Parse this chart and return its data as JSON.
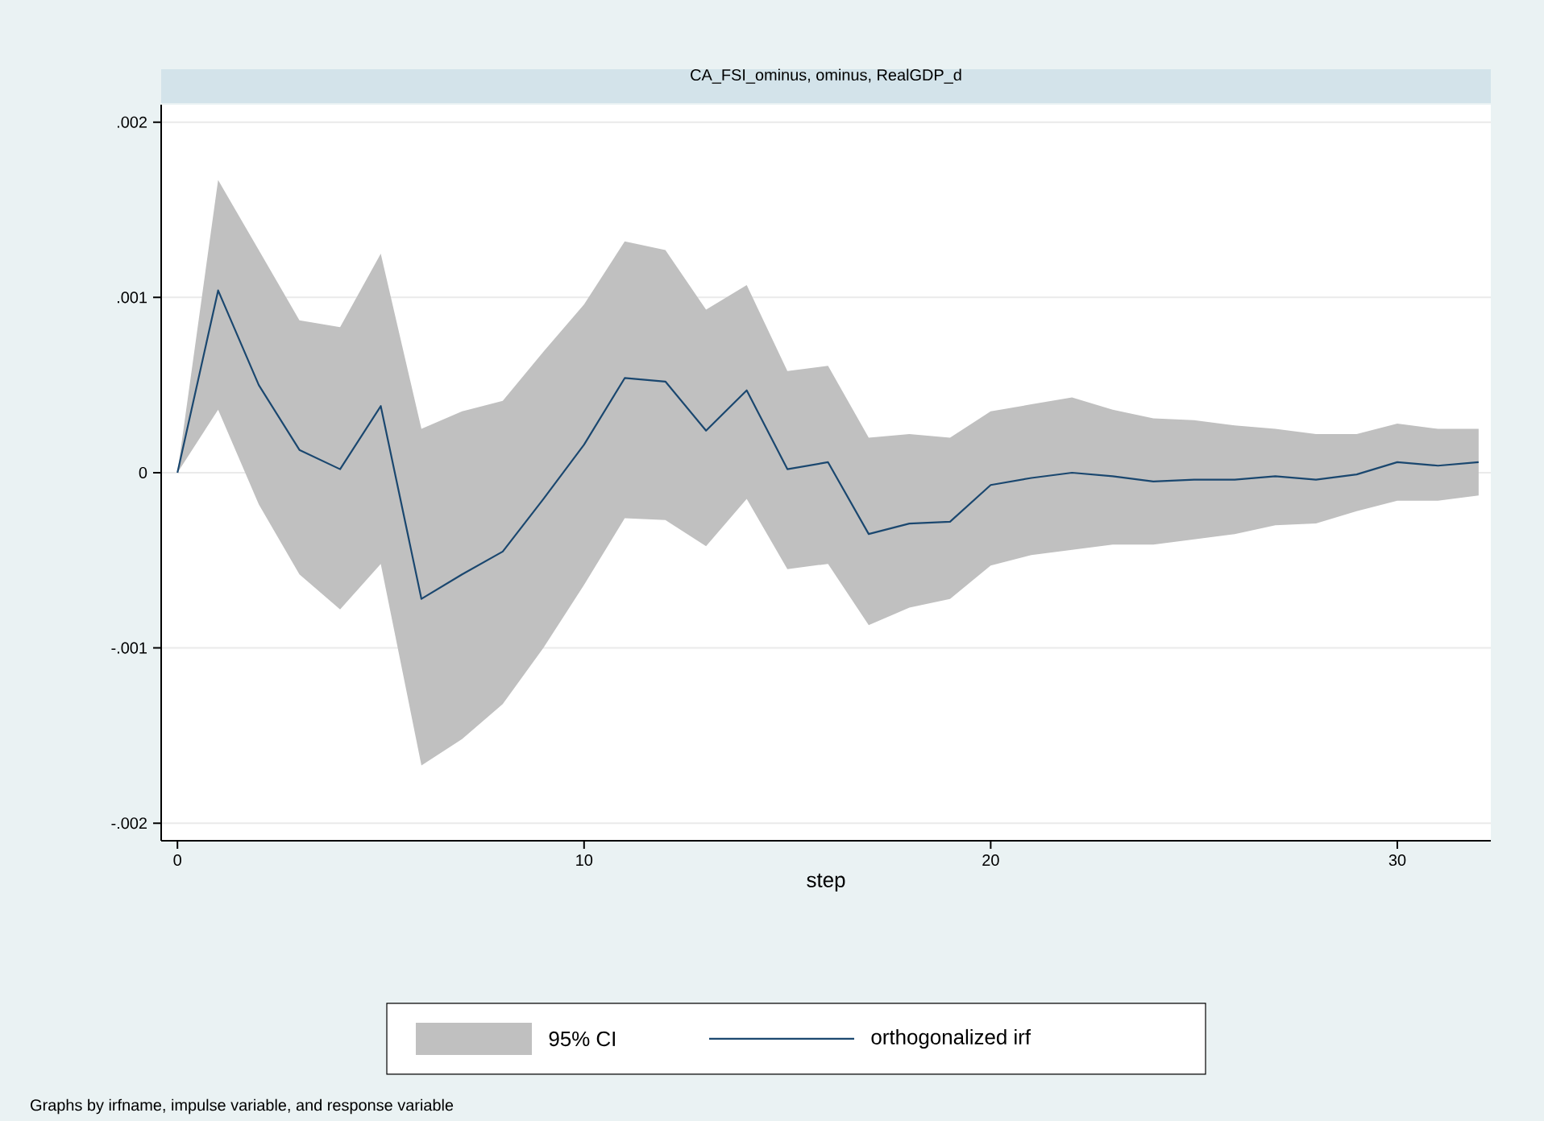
{
  "chart_data": {
    "type": "line",
    "title": "CA_FSI_ominus, ominus, RealGDP_d",
    "xlabel": "step",
    "annotations": [
      "95% CI",
      "Graphs by irfname, impulse variable, and response variable"
    ],
    "x": [
      0,
      1,
      2,
      3,
      4,
      5,
      6,
      7,
      8,
      9,
      10,
      11,
      12,
      13,
      14,
      15,
      16,
      17,
      18,
      19,
      20,
      21,
      22,
      23,
      24,
      25,
      26,
      27,
      28,
      29,
      30,
      31,
      32
    ],
    "series": [
      {
        "name": "orthogonalized irf",
        "color": "#1a476f",
        "values": [
          0,
          0.00104,
          0.0005,
          0.00013,
          2e-05,
          0.00038,
          -0.00072,
          -0.00058,
          -0.00045,
          -0.00015,
          0.00016,
          0.00054,
          0.00052,
          0.00024,
          0.00047,
          2e-05,
          6e-05,
          -0.00035,
          -0.00029,
          -0.00028,
          -7e-05,
          -3e-05,
          0,
          -2e-05,
          -5e-05,
          -4e-05,
          -4e-05,
          -2e-05,
          -4e-05,
          -1e-05,
          6e-05,
          4e-05,
          6e-05
        ],
        "lower": [
          0,
          0.00036,
          -0.00018,
          -0.00058,
          -0.00078,
          -0.00052,
          -0.00167,
          -0.00152,
          -0.00132,
          -0.001,
          -0.00064,
          -0.00026,
          -0.00027,
          -0.00042,
          -0.00015,
          -0.00055,
          -0.00052,
          -0.00087,
          -0.00077,
          -0.00072,
          -0.00053,
          -0.00047,
          -0.00044,
          -0.00041,
          -0.00041,
          -0.00038,
          -0.00035,
          -0.0003,
          -0.00029,
          -0.00022,
          -0.00016,
          -0.00016,
          -0.00013
        ],
        "upper": [
          0,
          0.00167,
          0.00127,
          0.00087,
          0.00083,
          0.00125,
          0.00025,
          0.00035,
          0.00041,
          0.00069,
          0.00096,
          0.00132,
          0.00127,
          0.00093,
          0.00107,
          0.00058,
          0.00061,
          0.0002,
          0.00022,
          0.0002,
          0.00035,
          0.00039,
          0.00043,
          0.00036,
          0.00031,
          0.0003,
          0.00027,
          0.00025,
          0.00022,
          0.00022,
          0.00028,
          0.00025,
          0.00025
        ]
      }
    ],
    "xlim": [
      -0.4,
      32.3
    ],
    "ylim": [
      -0.0021,
      0.0021
    ],
    "xticks": [
      0,
      10,
      20,
      30
    ],
    "yticks": [
      {
        "value": -0.002,
        "label": "-.002"
      },
      {
        "value": -0.001,
        "label": "-.001"
      },
      {
        "value": 0,
        "label": "0"
      },
      {
        "value": 0.001,
        "label": ".001"
      },
      {
        "value": 0.002,
        "label": ".002"
      }
    ],
    "grid": "y",
    "legend": "bottom"
  }
}
